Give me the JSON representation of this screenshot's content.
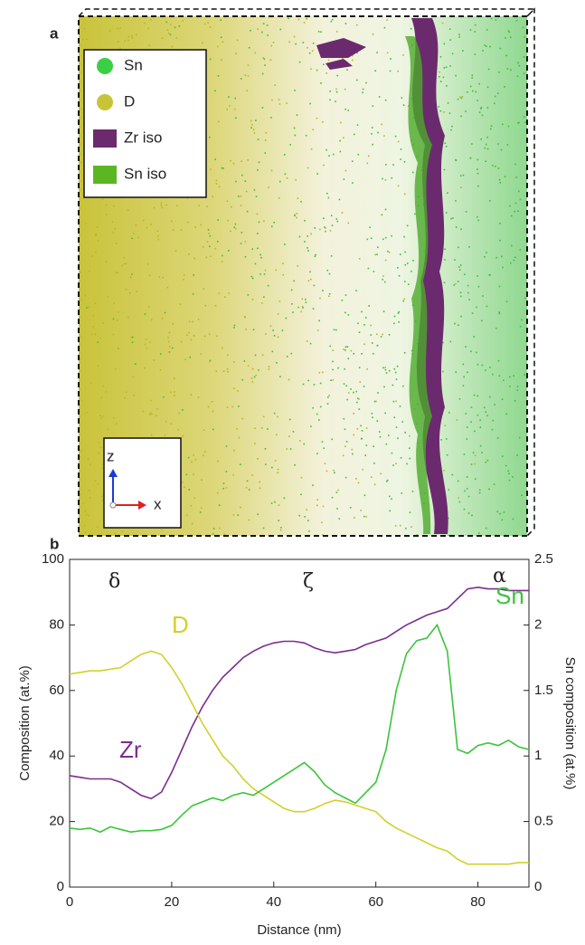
{
  "panel_a": {
    "label": "a",
    "legend": [
      "Sn",
      "D",
      "Zr iso",
      "Sn iso"
    ],
    "axes": [
      "z",
      "x"
    ]
  },
  "chart_data": {
    "type": "line",
    "panel_label": "b",
    "x_label": "Distance (nm)",
    "y_label": "Composition (at.%)",
    "y2_label": "Sn composition (at.%)",
    "annotations": [
      "δ",
      "ζ",
      "α"
    ],
    "x": [
      0,
      2,
      4,
      6,
      8,
      10,
      12,
      14,
      16,
      18,
      20,
      22,
      24,
      26,
      28,
      30,
      32,
      34,
      36,
      38,
      40,
      42,
      44,
      46,
      48,
      50,
      52,
      54,
      56,
      58,
      60,
      62,
      64,
      66,
      68,
      70,
      72,
      74,
      76,
      78,
      80,
      82,
      84,
      86,
      88,
      90
    ],
    "series": [
      {
        "name": "Zr",
        "color": "#7b2d8e",
        "values": [
          34,
          33.5,
          33,
          33,
          33,
          32,
          30,
          28,
          27,
          29,
          35,
          42,
          49,
          55,
          60,
          64,
          67,
          70,
          72,
          73.5,
          74.5,
          75,
          75,
          74.5,
          73,
          72,
          71.5,
          72,
          72.5,
          74,
          75,
          76,
          78,
          80,
          81.5,
          83,
          84,
          85,
          88,
          91,
          91.5,
          91,
          91,
          90.5,
          90.5,
          90.5
        ]
      },
      {
        "name": "D",
        "color": "#d4cf2a",
        "values": [
          65,
          65.5,
          66,
          66,
          66.5,
          67,
          69,
          71,
          72,
          71,
          67,
          62,
          56,
          50,
          45,
          40,
          37,
          33,
          30,
          28,
          26,
          24,
          23,
          23,
          24,
          25.5,
          26.5,
          26,
          25,
          24,
          23,
          20,
          18,
          16.5,
          15,
          13.5,
          12,
          11,
          8.5,
          7,
          7,
          7,
          7,
          7,
          7.5,
          7.5
        ]
      },
      {
        "name": "Sn",
        "color": "#3cc43c",
        "axis": "y2",
        "values": [
          0.45,
          0.44,
          0.45,
          0.42,
          0.46,
          0.44,
          0.42,
          0.43,
          0.43,
          0.44,
          0.47,
          0.55,
          0.62,
          0.65,
          0.68,
          0.66,
          0.7,
          0.72,
          0.7,
          0.75,
          0.8,
          0.85,
          0.9,
          0.95,
          0.88,
          0.78,
          0.72,
          0.68,
          0.64,
          0.72,
          0.8,
          1.05,
          1.5,
          1.78,
          1.88,
          1.9,
          2.0,
          1.8,
          1.05,
          1.02,
          1.08,
          1.1,
          1.08,
          1.12,
          1.07,
          1.05
        ]
      }
    ],
    "xlim": [
      0,
      90
    ],
    "xticks": [
      0,
      20,
      40,
      60,
      80
    ],
    "ylim": [
      0,
      100
    ],
    "yticks": [
      0,
      20,
      40,
      60,
      80,
      100
    ],
    "y2lim": [
      0,
      2.5
    ],
    "y2ticks": [
      0,
      0.5,
      1,
      1.5,
      2,
      2.5
    ]
  }
}
